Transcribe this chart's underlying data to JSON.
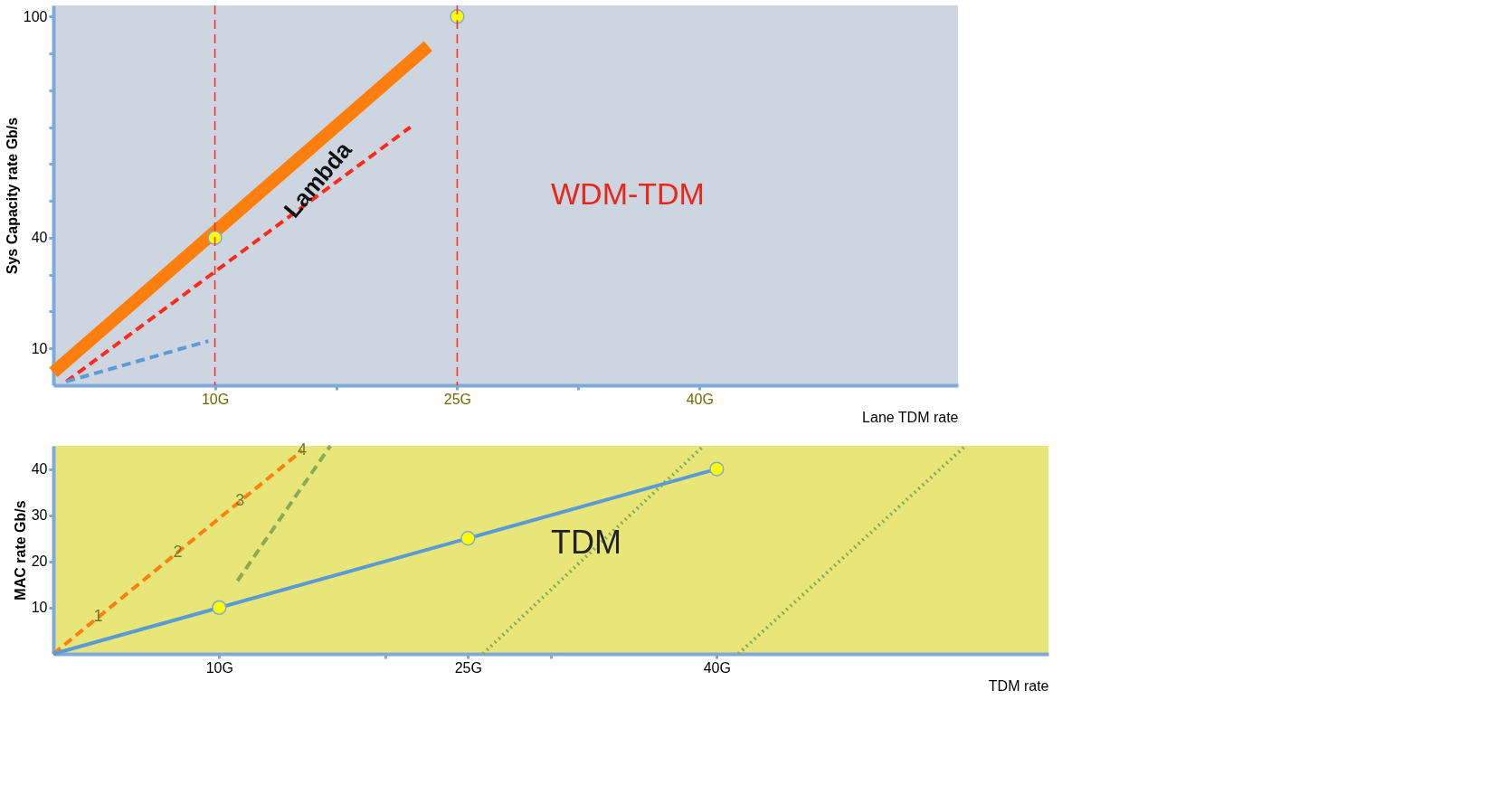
{
  "chart_data": [
    {
      "type": "line",
      "xlabel": "Lane TDM rate",
      "ylabel": "Sys Capacity rate Gb/s",
      "xlim": [
        0,
        56
      ],
      "ylim": [
        0,
        103
      ],
      "xticks": [
        {
          "value": 10,
          "label": "10G"
        },
        {
          "value": 17.5,
          "label": null
        },
        {
          "value": 25,
          "label": "25G"
        },
        {
          "value": 32.5,
          "label": null
        },
        {
          "value": 40,
          "label": "40G"
        }
      ],
      "yticks": [
        10,
        {
          "value": 20,
          "label": null
        },
        {
          "value": 30,
          "label": null
        },
        40,
        {
          "value": 50,
          "label": null
        },
        {
          "value": 60,
          "label": null
        },
        {
          "value": 70,
          "label": null
        },
        {
          "value": 80,
          "label": null
        },
        {
          "value": 90,
          "label": null
        },
        100
      ],
      "grid": false,
      "series": [
        {
          "color": "#ff7f0e",
          "line_style": "solid",
          "x": [
            0,
            23.2
          ],
          "values": [
            3.5,
            92
          ]
        },
        {
          "color": "#ff2a1a",
          "line_style": "dashed",
          "x": [
            0.8,
            22.1
          ],
          "values": [
            1,
            70
          ]
        },
        {
          "color": "#5b9bd5",
          "line_style": "dashed",
          "x": [
            0.8,
            9.6
          ],
          "values": [
            1,
            12
          ]
        },
        {
          "type": "scatter",
          "color": "#ffff00",
          "marker": "circle",
          "x": [
            10,
            25
          ],
          "values": [
            40,
            100
          ]
        }
      ],
      "ref_lines": [
        {
          "axis": "x",
          "value": 10,
          "color": "#ff2a1a",
          "line_style": "dashed"
        },
        {
          "axis": "x",
          "value": 25,
          "color": "#ff2a1a",
          "line_style": "dashed"
        }
      ],
      "annotations": [
        {
          "text": "Lambda",
          "x": 17,
          "y": 53.4
        },
        "WDM-TDM"
      ]
    },
    {
      "type": "line",
      "xlabel": "TDM rate",
      "ylabel": "MAC rate  Gb/s",
      "xlim": [
        0,
        60
      ],
      "ylim": [
        0,
        45
      ],
      "xticks": [
        {
          "value": 10,
          "label": "10G"
        },
        {
          "value": 20,
          "label": null
        },
        {
          "value": 25,
          "label": "25G"
        },
        {
          "value": 30,
          "label": null
        },
        {
          "value": 40,
          "label": "40G"
        }
      ],
      "yticks": [
        10,
        20,
        30,
        40
      ],
      "grid": false,
      "series": [
        {
          "color": "#ff7f0e",
          "line_style": "dashed",
          "x": [
            0,
            15
          ],
          "values": [
            0,
            44
          ]
        },
        {
          "color": "#8aaa55",
          "line_style": "dashed",
          "x": [
            11.1,
            16.7
          ],
          "values": [
            15.8,
            45
          ]
        },
        {
          "color": "#8aaa55",
          "line_style": "dotted",
          "x": [
            25.9,
            39.2
          ],
          "values": [
            0,
            45
          ]
        },
        {
          "color": "#8aaa55",
          "line_style": "dotted",
          "x": [
            41.3,
            55
          ],
          "values": [
            0,
            45
          ]
        },
        {
          "color": "#5b9bd5",
          "line_style": "solid",
          "x": [
            0,
            40
          ],
          "values": [
            0,
            40
          ]
        },
        {
          "type": "scatter",
          "color": "#ffff00",
          "marker": "circle",
          "x": [
            10,
            25,
            40
          ],
          "values": [
            10,
            25,
            40
          ]
        }
      ],
      "annotations": [
        {
          "text": "1",
          "x": 2.7,
          "y": 8
        },
        {
          "text": "2",
          "x": 7.5,
          "y": 22
        },
        {
          "text": "3",
          "x": 11.25,
          "y": 33
        },
        {
          "text": "4",
          "x": 15,
          "y": 44
        },
        "TDM"
      ]
    }
  ]
}
